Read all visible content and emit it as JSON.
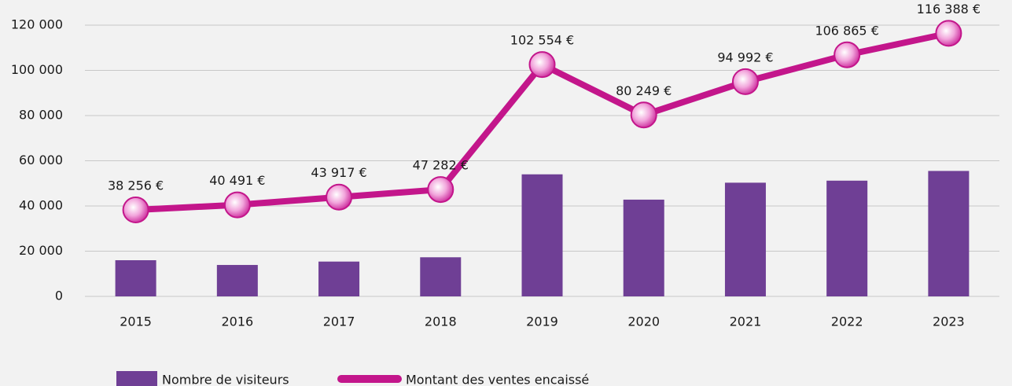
{
  "chart_data": {
    "type": "bar_line",
    "categories": [
      "2015",
      "2016",
      "2017",
      "2018",
      "2019",
      "2020",
      "2021",
      "2022",
      "2023"
    ],
    "series": [
      {
        "name": "Nombre de visiteurs",
        "type": "bar",
        "color": "#6f3f95",
        "values": [
          16000,
          13900,
          15400,
          17300,
          54000,
          42800,
          50300,
          51200,
          55500
        ]
      },
      {
        "name": "Montant des ventes encaissé",
        "type": "line",
        "color": "#c3168b",
        "values": [
          38256,
          40491,
          43917,
          47282,
          102554,
          80249,
          94992,
          106865,
          116388
        ],
        "value_labels": [
          "38 256 €",
          "40 491 €",
          "43 917 €",
          "47 282 €",
          "102 554 €",
          "80 249 €",
          "94 992 €",
          "106 865 €",
          "116 388 €"
        ]
      }
    ],
    "ylim": [
      0,
      120000
    ],
    "yticks": [
      0,
      {
        "value": 20000,
        "label": "20 000"
      },
      {
        "value": 40000,
        "label": "40 000"
      },
      {
        "value": 60000,
        "label": "60 000"
      },
      {
        "value": 80000,
        "label": "80 000"
      },
      {
        "value": 100000,
        "label": "100 000"
      },
      {
        "value": 120000,
        "label": "120 000"
      }
    ],
    "grid": true,
    "legend": "bottom"
  }
}
